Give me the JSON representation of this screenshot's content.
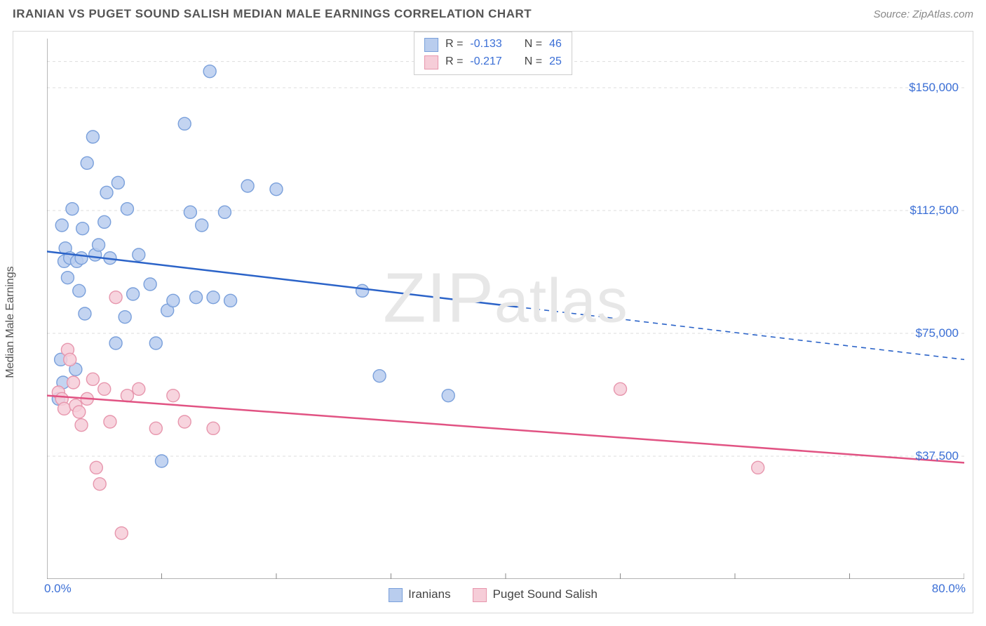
{
  "title": "IRANIAN VS PUGET SOUND SALISH MEDIAN MALE EARNINGS CORRELATION CHART",
  "source": "Source: ZipAtlas.com",
  "watermark": "ZIPatlas",
  "ylabel": "Median Male Earnings",
  "chart": {
    "type": "scatter",
    "xlim": [
      0,
      80
    ],
    "ylim": [
      0,
      165000
    ],
    "xtick_labels": {
      "left": "0.0%",
      "right": "80.0%"
    },
    "gridline_y_values": [
      37500,
      75000,
      112500,
      150000,
      158000
    ],
    "ytick_labels": {
      "37500": "$37,500",
      "75000": "$75,000",
      "112500": "$112,500",
      "150000": "$150,000"
    },
    "xtick_positions": [
      0,
      10,
      20,
      30,
      40,
      50,
      60,
      70,
      80
    ],
    "grid_color": "#dddddd",
    "axis_color": "#888888",
    "background_color": "#ffffff",
    "marker_radius": 9,
    "marker_stroke_width": 1.4,
    "line_width": 2.5,
    "series": [
      {
        "name": "Iranians",
        "color_fill": "#b9cdee",
        "color_stroke": "#7aa0db",
        "color_line": "#2b63c8",
        "R": "-0.133",
        "N": "46",
        "regression": {
          "x1": 0,
          "y1": 100000,
          "x2": 80,
          "y2": 67000,
          "solid_until_x": 41
        },
        "points": [
          [
            1.0,
            55000
          ],
          [
            1.2,
            67000
          ],
          [
            1.3,
            108000
          ],
          [
            1.4,
            60000
          ],
          [
            1.5,
            97000
          ],
          [
            1.6,
            101000
          ],
          [
            1.8,
            92000
          ],
          [
            2.0,
            98000
          ],
          [
            2.2,
            113000
          ],
          [
            2.5,
            64000
          ],
          [
            2.6,
            97000
          ],
          [
            2.8,
            88000
          ],
          [
            3.0,
            98000
          ],
          [
            3.1,
            107000
          ],
          [
            3.3,
            81000
          ],
          [
            3.5,
            127000
          ],
          [
            4.0,
            135000
          ],
          [
            4.2,
            99000
          ],
          [
            4.5,
            102000
          ],
          [
            5.0,
            109000
          ],
          [
            5.2,
            118000
          ],
          [
            5.5,
            98000
          ],
          [
            6.0,
            72000
          ],
          [
            6.2,
            121000
          ],
          [
            6.8,
            80000
          ],
          [
            7.0,
            113000
          ],
          [
            7.5,
            87000
          ],
          [
            8.0,
            99000
          ],
          [
            9.0,
            90000
          ],
          [
            9.5,
            72000
          ],
          [
            10.0,
            36000
          ],
          [
            10.5,
            82000
          ],
          [
            11.0,
            85000
          ],
          [
            12.0,
            139000
          ],
          [
            12.5,
            112000
          ],
          [
            13.0,
            86000
          ],
          [
            13.5,
            108000
          ],
          [
            14.2,
            155000
          ],
          [
            14.5,
            86000
          ],
          [
            15.5,
            112000
          ],
          [
            16.0,
            85000
          ],
          [
            17.5,
            120000
          ],
          [
            20.0,
            119000
          ],
          [
            27.5,
            88000
          ],
          [
            29.0,
            62000
          ],
          [
            35.0,
            56000
          ]
        ]
      },
      {
        "name": "Puget Sound Salish",
        "color_fill": "#f6cdd8",
        "color_stroke": "#e796ad",
        "color_line": "#e15383",
        "R": "-0.217",
        "N": "25",
        "regression": {
          "x1": 0,
          "y1": 56000,
          "x2": 80,
          "y2": 35500,
          "solid_until_x": 80
        },
        "points": [
          [
            1.0,
            57000
          ],
          [
            1.3,
            55000
          ],
          [
            1.5,
            52000
          ],
          [
            1.8,
            70000
          ],
          [
            2.0,
            67000
          ],
          [
            2.3,
            60000
          ],
          [
            2.5,
            53000
          ],
          [
            2.8,
            51000
          ],
          [
            3.0,
            47000
          ],
          [
            3.5,
            55000
          ],
          [
            4.0,
            61000
          ],
          [
            4.3,
            34000
          ],
          [
            4.6,
            29000
          ],
          [
            5.0,
            58000
          ],
          [
            5.5,
            48000
          ],
          [
            6.0,
            86000
          ],
          [
            6.5,
            14000
          ],
          [
            7.0,
            56000
          ],
          [
            8.0,
            58000
          ],
          [
            9.5,
            46000
          ],
          [
            11.0,
            56000
          ],
          [
            12.0,
            48000
          ],
          [
            14.5,
            46000
          ],
          [
            50.0,
            58000
          ],
          [
            62.0,
            34000
          ]
        ]
      }
    ]
  },
  "legend_bottom": [
    {
      "label": "Iranians",
      "fill": "#b9cdee",
      "stroke": "#7aa0db"
    },
    {
      "label": "Puget Sound Salish",
      "fill": "#f6cdd8",
      "stroke": "#e796ad"
    }
  ]
}
